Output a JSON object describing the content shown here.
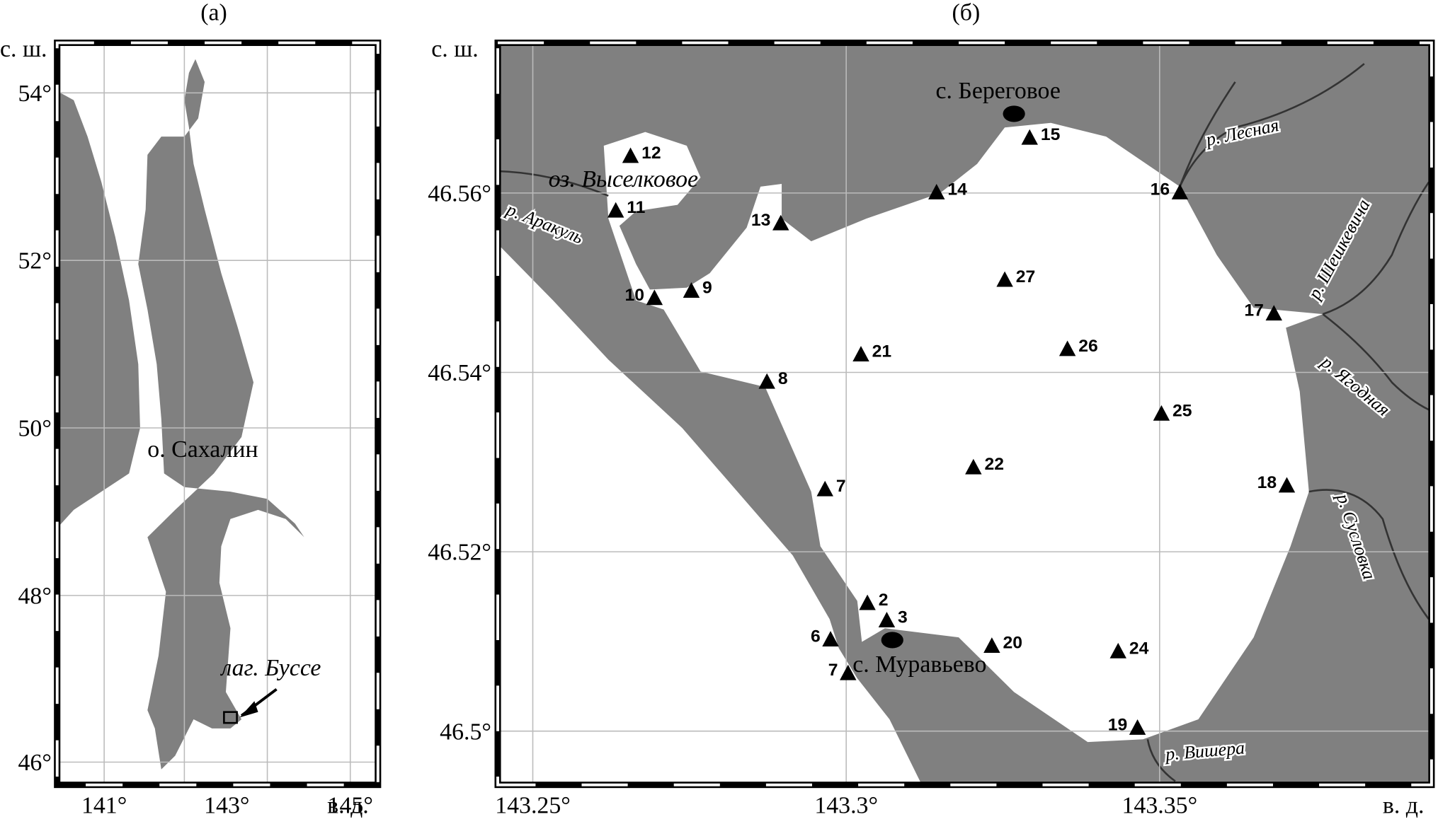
{
  "panel_a": {
    "label": "(а)",
    "lat_unit": "с. ш.",
    "lon_unit": "в. д.",
    "lat_ticks": [
      "54°",
      "52°",
      "50°",
      "48°",
      "46°"
    ],
    "lon_ticks": [
      "141°",
      "143°",
      "145°"
    ],
    "island": "о. Сахалин",
    "lagoon": "лаг. Буссе"
  },
  "panel_b": {
    "label": "(б)",
    "lat_unit": "с. ш.",
    "lon_unit": "в. д.",
    "lat_ticks": [
      "46.56°",
      "46.54°",
      "46.52°",
      "46.5°"
    ],
    "lon_ticks": [
      "143.25°",
      "143.3°",
      "143.35°"
    ],
    "villages": [
      "с. Береговое",
      "с. Муравьево"
    ],
    "lake": "оз. Выселковое",
    "rivers": [
      "р. Аракуль",
      "р. Лесная",
      "р. Шешкевича",
      "р. Ягодная",
      "р. Сусловка",
      "р. Вишера"
    ],
    "stations": [
      "12",
      "11",
      "10",
      "9",
      "13",
      "14",
      "15",
      "16",
      "27",
      "21",
      "26",
      "8",
      "17",
      "25",
      "22",
      "18",
      "7",
      "2",
      "3",
      "6",
      "20",
      "24",
      "7",
      "19"
    ]
  }
}
